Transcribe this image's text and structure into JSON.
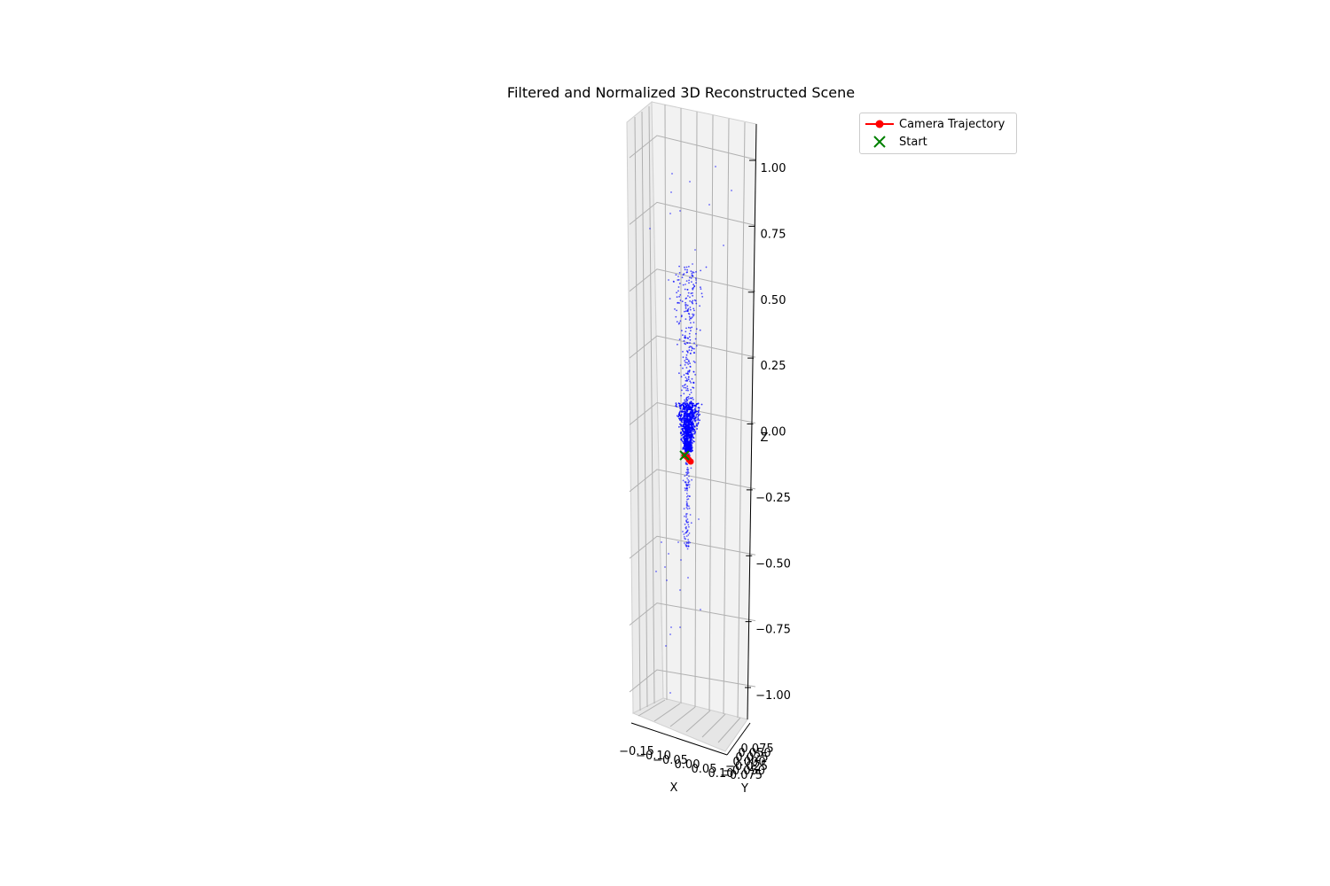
{
  "chart_data": {
    "type": "scatter",
    "projection": "3d",
    "title": "Filtered and Normalized 3D Reconstructed Scene",
    "xlabel": "X",
    "ylabel": "Y",
    "zlabel": "Z",
    "z_ticks": [
      "1.00",
      "0.75",
      "0.50",
      "0.25",
      "0.00",
      "−0.25",
      "−0.50",
      "−0.75",
      "−1.00"
    ],
    "z_tick_values": [
      1.0,
      0.75,
      0.5,
      0.25,
      0.0,
      -0.25,
      -0.5,
      -0.75,
      -1.0
    ],
    "x_ticks": [
      "−0.15",
      "−0.10",
      "−0.05",
      "0.00",
      "0.05",
      "0.10"
    ],
    "y_ticks": [
      "−0.075",
      "−0.050",
      "−0.025",
      "0.000",
      "0.025",
      "0.050",
      "0.075"
    ],
    "zlim": [
      -1.1,
      1.1
    ],
    "grid": true,
    "legend_placement": "upper right, outside plot",
    "series": [
      {
        "name": "Camera Trajectory",
        "color": "#ff0000",
        "marker": "circle-line"
      },
      {
        "name": "Start",
        "color": "#008000",
        "marker": "x"
      }
    ],
    "point_cloud_color": "#0000ff",
    "point_cloud": {
      "description_free": true,
      "dense_core_z": [
        -0.05,
        0.15
      ],
      "sparse_z_range": [
        -0.95,
        1.0
      ]
    }
  }
}
